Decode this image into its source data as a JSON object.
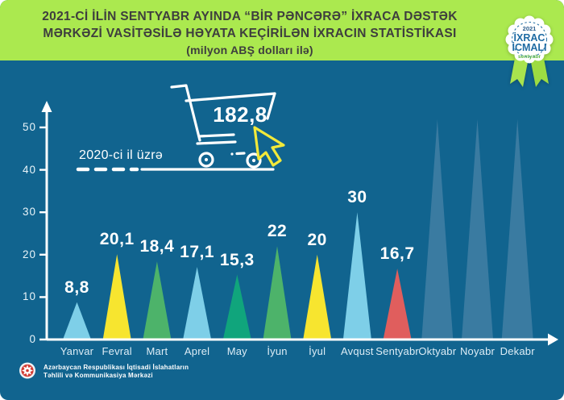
{
  "header": {
    "title_line1": "2021-Cİ İLİN SENTYABR AYINDA “BİR PƏNCƏRƏ” İXRACA DƏSTƏK",
    "title_line2": "MƏRKƏZİ VASİTƏSİLƏ HƏYATA KEÇİRİLƏN İXRACIN STATİSTİKASI",
    "subtitle": "(milyon ABŞ dolları ilə)"
  },
  "badge": {
    "year": "2021",
    "line1": "İXRAC",
    "line2": "İCMALI",
    "month": "sentyabr"
  },
  "annotation": {
    "cart_value": "182,8",
    "cart_note": "2020-ci il üzrə"
  },
  "footer": {
    "org_line1": "Azərbaycan Respublikası İqtisadi İslahatların",
    "org_line2": "Təhlili və Kommunikasiya Mərkəzi"
  },
  "colors": {
    "background": "#11648f",
    "top_band": "#abe94f",
    "axis": "#ffffff",
    "cursor": "#f2e93a",
    "future_month": "#3a7ba1",
    "badge_blue": "#1f6ba3",
    "badge_green": "#5fb84a"
  },
  "chart_data": {
    "type": "bar",
    "title": "2021-ci ilin sentyabr ayında “Bir Pəncərə” İxraca Dəstək Mərkəzi vasitəsilə həyata keçirilən ixracın statistikası",
    "ylabel": "milyon ABŞ dolları",
    "categories": [
      "Yanvar",
      "Fevral",
      "Mart",
      "Aprel",
      "May",
      "İyun",
      "İyul",
      "Avqust",
      "Sentyabr",
      "Oktyabr",
      "Noyabr",
      "Dekabr"
    ],
    "values": [
      8.8,
      20.1,
      18.4,
      17.1,
      15.3,
      22,
      20,
      30,
      16.7,
      null,
      null,
      null
    ],
    "value_labels": [
      "8,8",
      "20,1",
      "18,4",
      "17,1",
      "15,3",
      "22",
      "20",
      "30",
      "16,7",
      "",
      "",
      ""
    ],
    "colors": [
      "#7ecfe8",
      "#f7e52f",
      "#4db36a",
      "#7ecfe8",
      "#10a57c",
      "#4db36a",
      "#f7e52f",
      "#7ecfe8",
      "#e05e5d",
      "#3a7ba1",
      "#3a7ba1",
      "#3a7ba1"
    ],
    "yticks": [
      0,
      10,
      20,
      30,
      40,
      50
    ],
    "ylim": [
      0,
      53
    ],
    "grid": false,
    "legend": "none",
    "annotation_2020_total": "182,8"
  }
}
